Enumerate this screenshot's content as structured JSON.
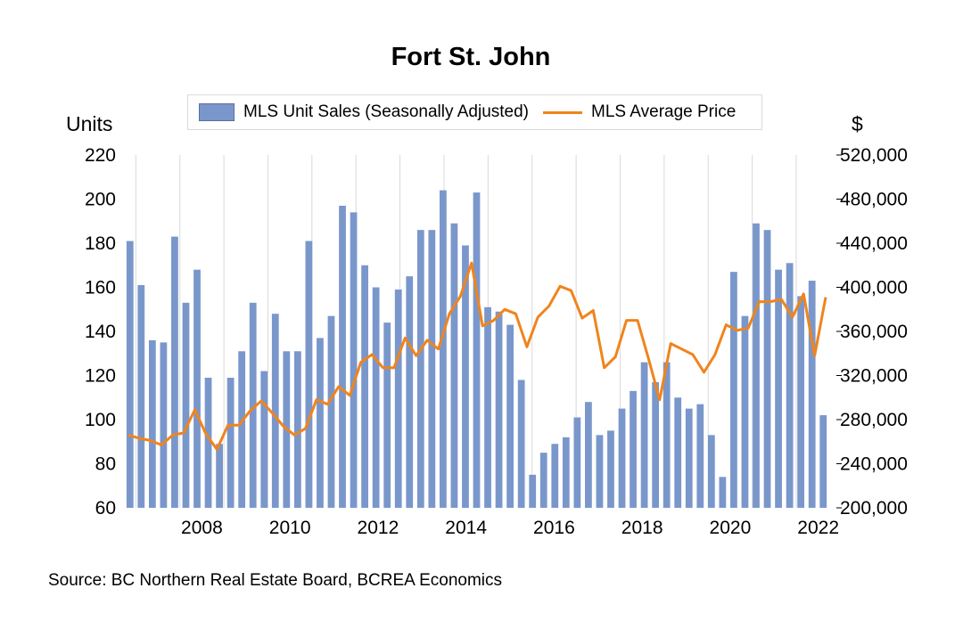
{
  "chart_data": {
    "type": "bar+line",
    "title": "Fort St. John",
    "legend": [
      "MLS Unit Sales (Seasonally Adjusted)",
      "MLS Average Price"
    ],
    "legend_position": "top",
    "left_axis_unit": "Units",
    "right_axis_unit": "$",
    "y_left_lim": [
      60,
      220
    ],
    "y_left_ticks": [
      "220",
      "200",
      "180",
      "160",
      "140",
      "120",
      "100",
      "80",
      "60"
    ],
    "y_right_lim": [
      200000,
      520000
    ],
    "y_right_ticks": [
      "520,000",
      "480,000",
      "440,000",
      "400,000",
      "360,000",
      "320,000",
      "280,000",
      "240,000",
      "200,000"
    ],
    "x_ticks": [
      "2008",
      "2010",
      "2012",
      "2014",
      "2016",
      "2018",
      "2020",
      "2022"
    ],
    "x_tick_values": [
      2008,
      2010,
      2012,
      2014,
      2016,
      2018,
      2020,
      2022
    ],
    "x_start": 2006.75,
    "x_end": 2022.75,
    "grid": "vertical",
    "series": [
      {
        "name": "MLS Unit Sales (Seasonally Adjusted)",
        "type": "bar",
        "color": "#7a97cb",
        "axis": "left",
        "values": [
          181,
          161,
          136,
          135,
          183,
          153,
          168,
          119,
          89,
          119,
          131,
          153,
          122,
          148,
          131,
          131,
          181,
          137,
          147,
          197,
          194,
          170,
          160,
          144,
          159,
          165,
          186,
          186,
          204,
          189,
          179,
          203,
          151,
          149,
          143,
          118,
          75,
          85,
          89,
          92,
          101,
          108,
          93,
          95,
          105,
          113,
          126,
          117,
          126,
          110,
          105,
          107,
          93,
          74,
          167,
          147,
          189,
          186,
          168,
          171,
          156,
          163,
          102
        ]
      },
      {
        "name": "MLS Average Price",
        "type": "line",
        "color": "#f0841c",
        "axis": "right",
        "values": [
          266000,
          263000,
          261000,
          257000,
          266000,
          268000,
          289000,
          267000,
          253000,
          275000,
          275000,
          288000,
          297000,
          286000,
          274000,
          266000,
          272000,
          298000,
          294000,
          310000,
          302000,
          332000,
          339000,
          327000,
          327000,
          354000,
          338000,
          352000,
          344000,
          376000,
          392000,
          422000,
          365000,
          370000,
          380000,
          376000,
          346000,
          373000,
          383000,
          401000,
          397000,
          372000,
          379000,
          327000,
          337000,
          370000,
          370000,
          335000,
          298000,
          349000,
          344000,
          339000,
          323000,
          339000,
          366000,
          361000,
          363000,
          387000,
          387000,
          389000,
          373000,
          394000,
          338000,
          391000
        ]
      }
    ]
  },
  "source": "Source:  BC Northern Real Estate Board, BCREA Economics"
}
